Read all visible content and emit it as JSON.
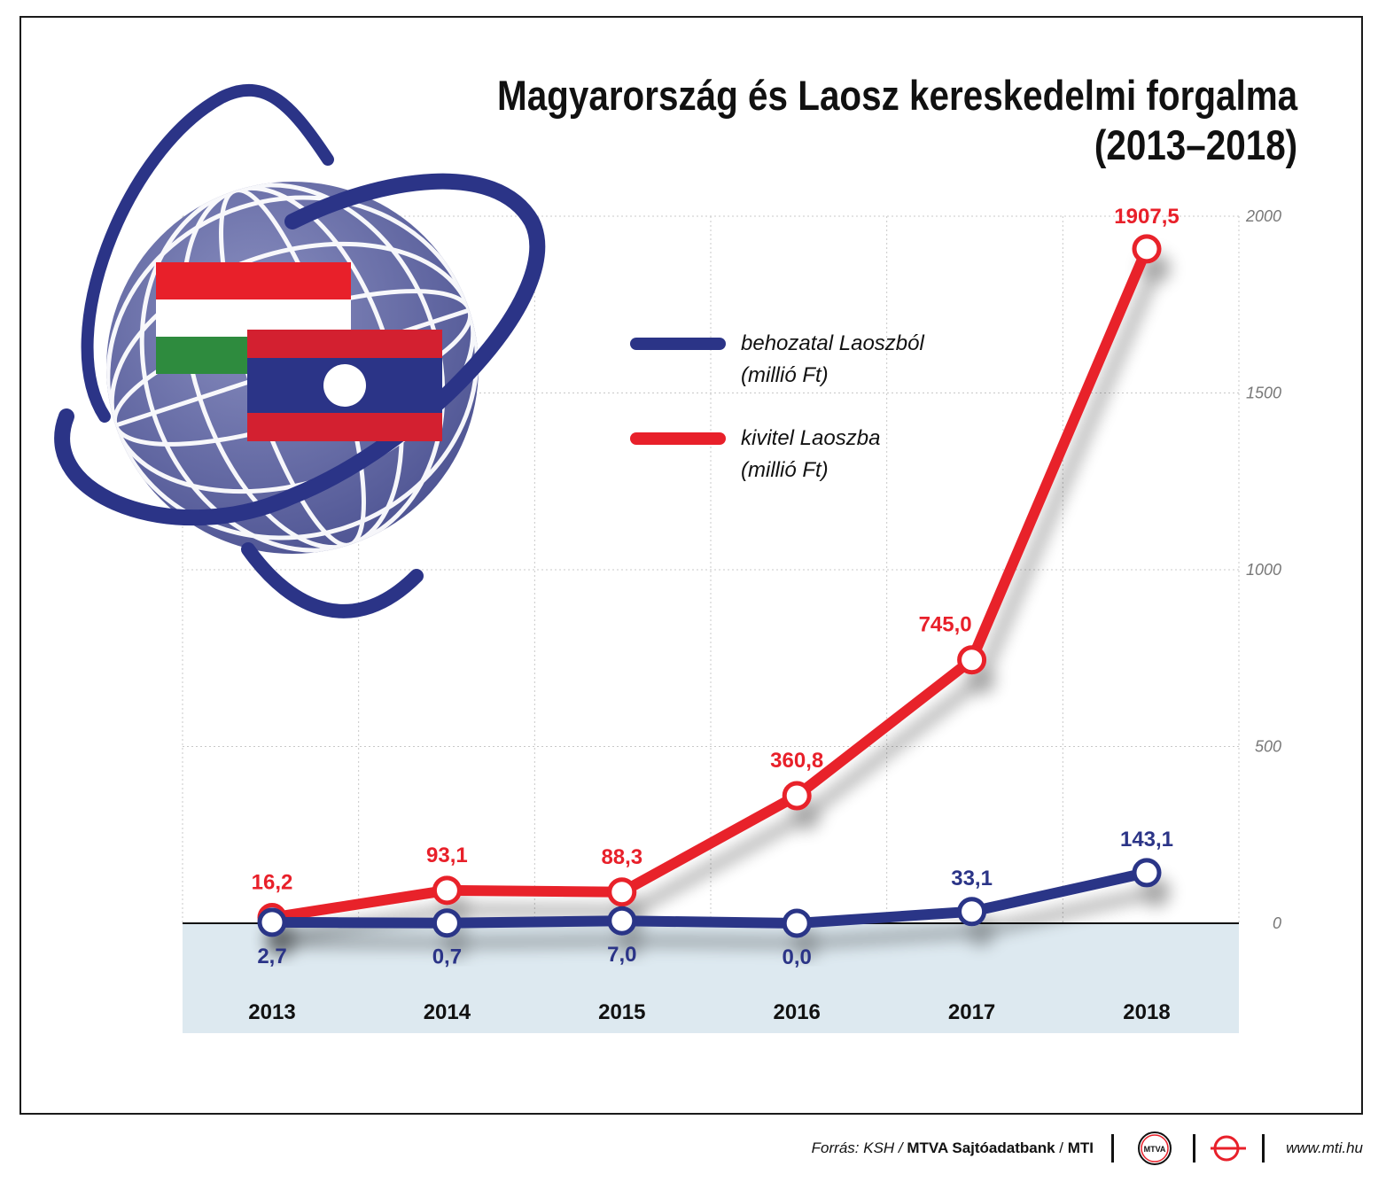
{
  "title": {
    "line1": "Magyarország és Laosz kereskedelmi forgalma",
    "line2": "(2013–2018)"
  },
  "chart_data": {
    "type": "line",
    "x": [
      "2013",
      "2014",
      "2015",
      "2016",
      "2017",
      "2018"
    ],
    "ylim": [
      -300,
      2000
    ],
    "yticks": [
      {
        "value": 2000,
        "label": "2000"
      },
      {
        "value": 1500,
        "label": "1500"
      },
      {
        "value": 1000,
        "label": "1000"
      },
      {
        "value": 500,
        "label": "500"
      },
      {
        "value": 0,
        "label": "0"
      }
    ],
    "grid": true,
    "legend_position": "center",
    "series": [
      {
        "name": "behozatal Laoszból",
        "name_line2": "(millió Ft)",
        "color": "#2b3487",
        "values": [
          2.7,
          0.7,
          7.0,
          0.0,
          33.1,
          143.1
        ],
        "labels": [
          "2,7",
          "0,7",
          "7,0",
          "0,0",
          "33,1",
          "143,1"
        ]
      },
      {
        "name": "kivitel Laoszba",
        "name_line2": "(millió Ft)",
        "color": "#e8202a",
        "values": [
          16.2,
          93.1,
          88.3,
          360.8,
          745.0,
          1907.5
        ],
        "labels": [
          "16,2",
          "93,1",
          "88,3",
          "360,8",
          "745,0",
          "1907,5"
        ]
      }
    ]
  },
  "colors": {
    "axis_band": "#dde9f0",
    "globe": "#6a6fa6",
    "orbit": "#2b3487",
    "hungary_flag": [
      "#e8202a",
      "#ffffff",
      "#2e8b3e"
    ],
    "laos_flag": [
      "#d32030",
      "#2b3487",
      "#ffffff"
    ]
  },
  "illustration": {
    "icons": [
      "globe-icon",
      "hungary-flag-icon",
      "laos-flag-icon"
    ]
  },
  "footer": {
    "source_prefix": "Forrás: KSH / ",
    "source_bold": "MTVA Sajtóadatbank",
    "source_sep": " / ",
    "source_mti": "MTI",
    "mtva_logo_text": "MTVA",
    "url": "www.mti.hu"
  }
}
